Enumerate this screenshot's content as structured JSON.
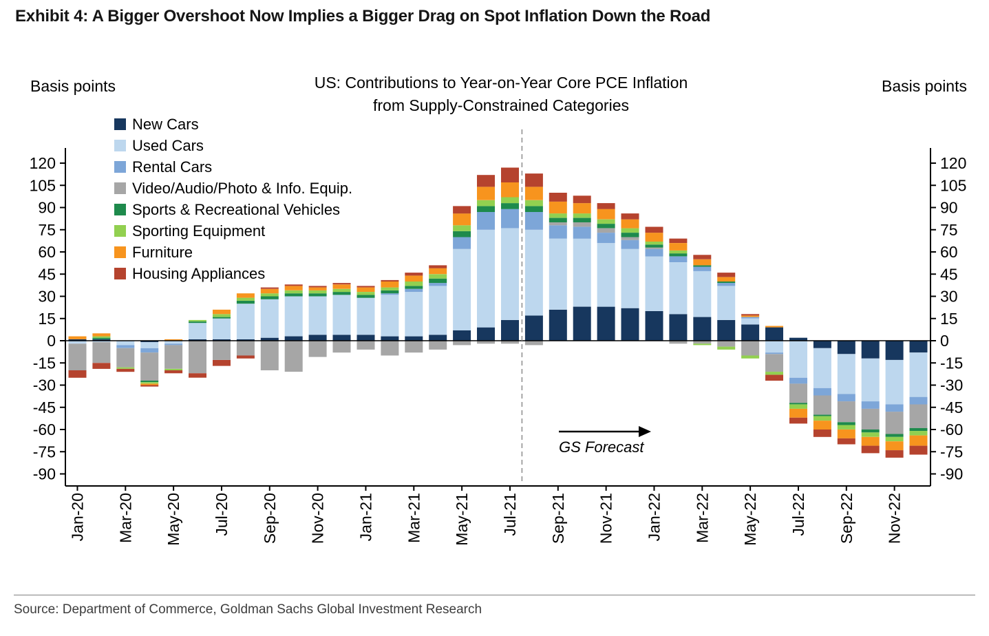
{
  "exhibit_title": "Exhibit 4: A Bigger Overshoot Now Implies a Bigger Drag on Spot Inflation Down the Road",
  "left_axis_caption": "Basis points",
  "right_axis_caption": "Basis points",
  "chart_title_line1": "US: Contributions to Year-on-Year Core PCE Inflation",
  "chart_title_line2": "from Supply-Constrained Categories",
  "forecast_label": "GS Forecast",
  "source_text": "Source: Department of Commerce, Goldman Sachs Global Investment Research",
  "chart_data": {
    "type": "bar",
    "stacked": true,
    "title": "US: Contributions to Year-on-Year Core PCE Inflation from Supply-Constrained Categories",
    "ylabel": "Basis points",
    "ylim": [
      -90,
      120
    ],
    "ytick_step": 15,
    "y_ticks": [
      120,
      105,
      90,
      75,
      60,
      45,
      30,
      15,
      0,
      -15,
      -30,
      -45,
      -60,
      -75,
      -90
    ],
    "grid": false,
    "legend_position": "top-left",
    "x_label_every": 2,
    "x_tick_labels": [
      "Jan-20",
      "Mar-20",
      "May-20",
      "Jul-20",
      "Sep-20",
      "Nov-20",
      "Jan-21",
      "Mar-21",
      "May-21",
      "Jul-21",
      "Sep-21",
      "Nov-21",
      "Jan-22",
      "Mar-22",
      "May-22",
      "Jul-22",
      "Sep-22",
      "Nov-22"
    ],
    "forecast_divider_after": "Jul-21",
    "categories": [
      "Jan-20",
      "Feb-20",
      "Mar-20",
      "Apr-20",
      "May-20",
      "Jun-20",
      "Jul-20",
      "Aug-20",
      "Sep-20",
      "Oct-20",
      "Nov-20",
      "Dec-20",
      "Jan-21",
      "Feb-21",
      "Mar-21",
      "Apr-21",
      "May-21",
      "Jun-21",
      "Jul-21",
      "Aug-21",
      "Sep-21",
      "Oct-21",
      "Nov-21",
      "Dec-21",
      "Jan-22",
      "Feb-22",
      "Mar-22",
      "Apr-22",
      "May-22",
      "Jun-22",
      "Jul-22",
      "Aug-22",
      "Sep-22",
      "Oct-22",
      "Nov-22",
      "Dec-22"
    ],
    "series": [
      {
        "name": "New Cars",
        "color": "#17375e",
        "values": [
          1,
          1,
          0,
          -1,
          0,
          1,
          1,
          1,
          2,
          3,
          4,
          4,
          4,
          3,
          3,
          4,
          7,
          9,
          14,
          17,
          21,
          23,
          23,
          22,
          20,
          18,
          16,
          14,
          11,
          9,
          2,
          -5,
          -9,
          -12,
          -13,
          -8
        ]
      },
      {
        "name": "Used Cars",
        "color": "#bdd7ee",
        "values": [
          -2,
          -1,
          -3,
          -4,
          -2,
          11,
          14,
          24,
          26,
          27,
          26,
          27,
          25,
          28,
          30,
          33,
          55,
          66,
          62,
          58,
          48,
          46,
          43,
          40,
          37,
          35,
          31,
          23,
          4,
          -8,
          -25,
          -27,
          -27,
          -29,
          -30,
          -30
        ]
      },
      {
        "name": "Rental Cars",
        "color": "#7da6d8",
        "values": [
          0,
          0,
          -2,
          -3,
          -1,
          0,
          0,
          0,
          0,
          0,
          0,
          0,
          0,
          1,
          2,
          2,
          8,
          12,
          13,
          12,
          9,
          8,
          7,
          6,
          5,
          4,
          3,
          2,
          1,
          -1,
          -4,
          -5,
          -5,
          -5,
          -5,
          -5
        ]
      },
      {
        "name": "Video/Audio/Photo & Info. Equip.",
        "color": "#a6a6a6",
        "values": [
          -18,
          -14,
          -13,
          -19,
          -16,
          -22,
          -13,
          -10,
          -20,
          -21,
          -11,
          -8,
          -6,
          -10,
          -8,
          -6,
          -3,
          -2,
          -2,
          -3,
          2,
          3,
          3,
          2,
          1,
          -2,
          -2,
          -4,
          -10,
          -12,
          -13,
          -13,
          -14,
          -14,
          -15,
          -16
        ]
      },
      {
        "name": "Sports & Recreational Vehicles",
        "color": "#1e8a4c",
        "values": [
          0,
          1,
          0,
          -1,
          0,
          1,
          1,
          2,
          2,
          2,
          2,
          2,
          2,
          2,
          2,
          3,
          4,
          4,
          4,
          4,
          3,
          3,
          3,
          3,
          2,
          2,
          1,
          1,
          0,
          0,
          -1,
          -1,
          -2,
          -2,
          -2,
          -2
        ]
      },
      {
        "name": "Sporting Equipment",
        "color": "#92d050",
        "values": [
          0,
          1,
          -1,
          -1,
          -1,
          1,
          2,
          2,
          2,
          2,
          2,
          2,
          2,
          2,
          3,
          3,
          4,
          4,
          4,
          4,
          3,
          3,
          3,
          3,
          2,
          2,
          -1,
          -2,
          -2,
          -2,
          -3,
          -3,
          -3,
          -3,
          -3,
          -3
        ]
      },
      {
        "name": "Furniture",
        "color": "#f7941e",
        "values": [
          2,
          2,
          0,
          -1,
          1,
          0,
          3,
          3,
          3,
          3,
          2,
          3,
          3,
          4,
          4,
          4,
          8,
          9,
          10,
          9,
          8,
          7,
          7,
          6,
          6,
          5,
          4,
          3,
          1,
          1,
          -6,
          -6,
          -6,
          -6,
          -6,
          -7
        ]
      },
      {
        "name": "Housing Appliances",
        "color": "#b5432e",
        "values": [
          -5,
          -4,
          -2,
          -1,
          -2,
          -3,
          -4,
          -2,
          1,
          1,
          1,
          1,
          1,
          1,
          2,
          2,
          5,
          8,
          10,
          9,
          6,
          5,
          4,
          4,
          4,
          3,
          3,
          3,
          1,
          -4,
          -4,
          -5,
          -4,
          -5,
          -5,
          -6
        ]
      }
    ]
  }
}
